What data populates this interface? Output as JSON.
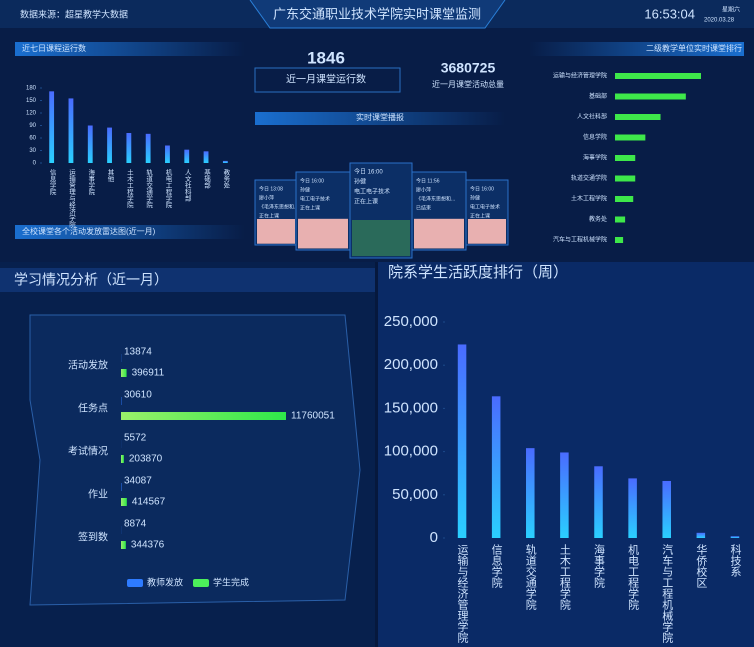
{
  "header": {
    "source": "数据来源：超星教学大数据",
    "title": "广东交通职业技术学院实时课堂监测",
    "time": "16:53:04",
    "weekday": "星期六",
    "date": "2020.03.28"
  },
  "stats": [
    {
      "value": 1846,
      "label": "近一月课堂运行数"
    },
    {
      "value": 3680725,
      "label": "近一月课堂活动总量"
    }
  ],
  "broadcast": {
    "title": "实时课堂播报",
    "cards": [
      {
        "time": "今日 13:08",
        "teacher": "廖小萍",
        "course": "《毛泽东思想和...",
        "status": "正在上课"
      },
      {
        "time": "今日 16:00",
        "teacher": "孙健",
        "course": "电工电子技术",
        "status": "正在上课"
      },
      {
        "time": "今日 16:00",
        "teacher": "孙健",
        "course": "电工电子技术",
        "status": "正在上课"
      },
      {
        "time": "今日 11:56",
        "teacher": "廖小萍",
        "course": "《毛泽东思想和...",
        "status": "已结束"
      },
      {
        "time": "今日 16:00",
        "teacher": "孙健",
        "course": "电工电子技术",
        "status": "正在上课"
      }
    ]
  },
  "radar_title": "全校课堂各个活动发放雷达图(近一月)",
  "chart_data": [
    {
      "type": "bar",
      "title": "近七日课程运行数",
      "categories": [
        "信息学院",
        "运输管理与经济学院",
        "海事学院",
        "其他",
        "土木工程学院",
        "轨道交通学院",
        "机电工程学院",
        "人文社科部",
        "基础部",
        "教务处"
      ],
      "values": [
        172,
        155,
        90,
        85,
        72,
        70,
        42,
        32,
        28,
        5
      ],
      "color": "#3b8cff",
      "ylim": [
        0,
        180
      ],
      "yticks": [
        0,
        30,
        60,
        90,
        120,
        150,
        180
      ]
    },
    {
      "type": "barh",
      "title": "二级教学单位实时课堂排行",
      "categories": [
        "运输与经济管理学院",
        "基础部",
        "人文社科部",
        "信息学院",
        "海事学院",
        "轨道交通学院",
        "土木工程学院",
        "教务处",
        "汽车与工程机械学院"
      ],
      "values": [
        85,
        70,
        45,
        30,
        20,
        20,
        18,
        10,
        8
      ],
      "color": "#3ee84a"
    },
    {
      "type": "barh-grouped",
      "title": "学习情况分析（近一月）",
      "categories": [
        "活动发放",
        "任务点",
        "考试情况",
        "作业",
        "签到数"
      ],
      "series": [
        {
          "name": "教师发放",
          "color": "#2e7bff",
          "values": [
            13874,
            30610,
            5572,
            34087,
            8874
          ]
        },
        {
          "name": "学生完成",
          "color": "#4cf05a",
          "values": [
            396911,
            11760051,
            203870,
            414567,
            344376
          ]
        }
      ]
    },
    {
      "type": "bar",
      "title": "院系学生活跃度排行（周）",
      "categories": [
        "运输与经济管理学院",
        "信息学院",
        "轨道交通学院",
        "土木工程学院",
        "海事学院",
        "机电工程学院",
        "汽车与工程机械学院",
        "华侨校区",
        "科技系"
      ],
      "values": [
        224000,
        164000,
        104000,
        99000,
        83000,
        69000,
        66000,
        6000,
        2000
      ],
      "color": "#3b6cff",
      "ylim": [
        0,
        250000
      ],
      "yticks": [
        0,
        {
          "value": 50000,
          "label": "50,000"
        },
        {
          "value": 100000,
          "label": "100,000"
        },
        {
          "value": 150000,
          "label": "150,000"
        },
        {
          "value": 200000,
          "label": "200,000"
        },
        {
          "value": 250000,
          "label": "250,000"
        }
      ]
    }
  ]
}
